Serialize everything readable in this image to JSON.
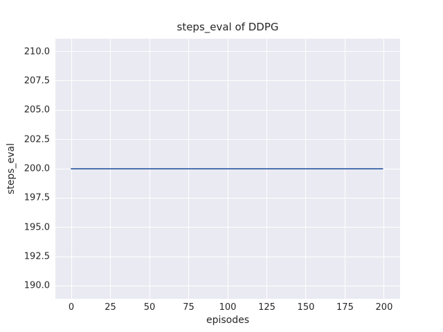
{
  "chart_data": {
    "type": "line",
    "title": "steps_eval of DDPG",
    "xlabel": "episodes",
    "ylabel": "steps_eval",
    "x_ticks": [
      0,
      25,
      50,
      75,
      100,
      125,
      150,
      175,
      200
    ],
    "x_tick_labels": [
      "0",
      "25",
      "50",
      "75",
      "100",
      "125",
      "150",
      "175",
      "200"
    ],
    "y_ticks": [
      190,
      192.5,
      195,
      197.5,
      200,
      202.5,
      205,
      207.5,
      210
    ],
    "y_tick_labels": [
      "190.0",
      "192.5",
      "195.0",
      "197.5",
      "200.0",
      "202.5",
      "205.0",
      "207.5",
      "210.0"
    ],
    "xlim": [
      -10.2,
      210.2
    ],
    "ylim": [
      188.9,
      211.1
    ],
    "grid": true,
    "legend": false,
    "series": [
      {
        "name": "steps_eval",
        "color": "#4c72b0",
        "x": [
          0,
          199
        ],
        "y": [
          200,
          200
        ]
      }
    ],
    "colors": {
      "figure_background": "#ffffff",
      "axes_background": "#eaeaf2",
      "gridline": "#ffffff",
      "text": "#262626"
    }
  }
}
